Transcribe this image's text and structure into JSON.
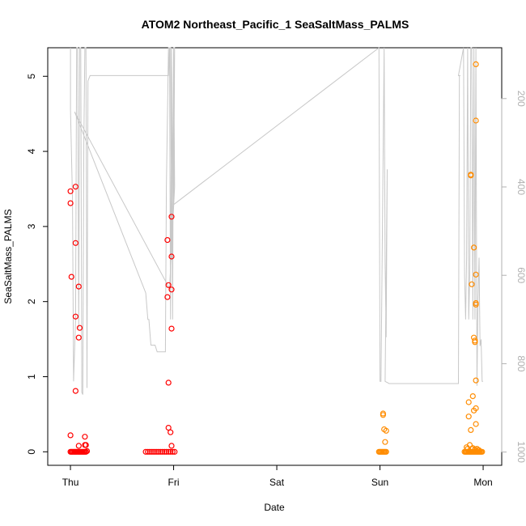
{
  "chart_data": {
    "type": "scatter",
    "title": "ATOM2 Northeast_Pacific_1 SeaSaltMass_PALMS",
    "xlabel": "Date",
    "ylabel": "SeaSaltMass_PALMS",
    "x_ticks": [
      "Thu",
      "Fri",
      "Sat",
      "Sun",
      "Mon"
    ],
    "xlim": [
      -0.22,
      4.18
    ],
    "ylim": [
      -0.18,
      5.38
    ],
    "y_ticks": [
      "0",
      "1",
      "2",
      "3",
      "4",
      "5"
    ],
    "y2_ticks": [
      "200",
      "400",
      "600",
      "800",
      "1000"
    ],
    "y2lim": [
      1030,
      85
    ],
    "y2_reversed": true,
    "grid": false,
    "colors": {
      "red": "#ff0000",
      "orange": "#ff8c00",
      "altitude": "#c8c8c8",
      "right_axis": "#b0b0b0"
    },
    "series": [
      {
        "color": "red",
        "points": [
          [
            0.0,
            3.47
          ],
          [
            0.0,
            3.31
          ],
          [
            0.01,
            2.33
          ],
          [
            0.0,
            0.22
          ],
          [
            0.05,
            3.53
          ],
          [
            0.05,
            2.78
          ],
          [
            0.05,
            1.8
          ],
          [
            0.05,
            0.81
          ],
          [
            0.08,
            2.2
          ],
          [
            0.09,
            1.65
          ],
          [
            0.08,
            1.52
          ],
          [
            0.14,
            0.2
          ],
          [
            0.14,
            0.09
          ],
          [
            0.15,
            0.09
          ],
          [
            0.08,
            0.08
          ],
          [
            0.0,
            0.0
          ],
          [
            0.01,
            0.0
          ],
          [
            0.02,
            0.0
          ],
          [
            0.03,
            0.0
          ],
          [
            0.04,
            0.0
          ],
          [
            0.05,
            0.0
          ],
          [
            0.06,
            0.0
          ],
          [
            0.07,
            0.0
          ],
          [
            0.08,
            0.0
          ],
          [
            0.09,
            0.0
          ],
          [
            0.1,
            0.0
          ],
          [
            0.11,
            0.0
          ],
          [
            0.12,
            0.0
          ],
          [
            0.13,
            0.0
          ],
          [
            0.14,
            0.0
          ],
          [
            0.15,
            0.0
          ],
          [
            0.16,
            0.01
          ],
          [
            0.94,
            2.82
          ],
          [
            0.95,
            2.22
          ],
          [
            0.94,
            2.06
          ],
          [
            0.98,
            3.13
          ],
          [
            0.98,
            2.6
          ],
          [
            0.98,
            2.16
          ],
          [
            0.98,
            1.64
          ],
          [
            0.95,
            0.92
          ],
          [
            0.95,
            0.32
          ],
          [
            0.97,
            0.26
          ],
          [
            0.98,
            0.08
          ],
          [
            0.73,
            0.0
          ],
          [
            0.75,
            0.0
          ],
          [
            0.77,
            0.0
          ],
          [
            0.79,
            0.0
          ],
          [
            0.81,
            0.0
          ],
          [
            0.83,
            0.0
          ],
          [
            0.85,
            0.0
          ],
          [
            0.87,
            0.0
          ],
          [
            0.89,
            0.0
          ],
          [
            0.91,
            0.0
          ],
          [
            0.93,
            0.0
          ],
          [
            0.95,
            0.0
          ],
          [
            0.97,
            0.0
          ],
          [
            0.99,
            0.0
          ],
          [
            1.01,
            0.0
          ]
        ]
      },
      {
        "color": "orange",
        "points": [
          [
            3.03,
            0.51
          ],
          [
            3.03,
            0.49
          ],
          [
            3.04,
            0.3
          ],
          [
            3.06,
            0.28
          ],
          [
            3.05,
            0.13
          ],
          [
            2.99,
            0.0
          ],
          [
            3.0,
            0.0
          ],
          [
            3.01,
            0.0
          ],
          [
            3.02,
            0.0
          ],
          [
            3.03,
            0.0
          ],
          [
            3.04,
            0.0
          ],
          [
            3.05,
            0.0
          ],
          [
            3.06,
            0.0
          ],
          [
            3.93,
            5.16
          ],
          [
            3.93,
            4.41
          ],
          [
            3.88,
            3.69
          ],
          [
            3.88,
            3.68
          ],
          [
            3.91,
            2.72
          ],
          [
            3.93,
            2.36
          ],
          [
            3.89,
            2.23
          ],
          [
            3.93,
            1.98
          ],
          [
            3.93,
            1.96
          ],
          [
            3.91,
            1.52
          ],
          [
            3.92,
            1.48
          ],
          [
            3.92,
            1.46
          ],
          [
            3.93,
            0.95
          ],
          [
            3.9,
            0.74
          ],
          [
            3.86,
            0.66
          ],
          [
            3.93,
            0.58
          ],
          [
            3.91,
            0.55
          ],
          [
            3.86,
            0.47
          ],
          [
            3.93,
            0.37
          ],
          [
            3.88,
            0.29
          ],
          [
            3.84,
            0.06
          ],
          [
            3.85,
            0.04
          ],
          [
            3.87,
            0.09
          ],
          [
            3.89,
            0.04
          ],
          [
            3.9,
            0.05
          ],
          [
            3.92,
            0.03
          ],
          [
            3.94,
            0.04
          ],
          [
            3.95,
            0.02
          ],
          [
            3.96,
            0.02
          ],
          [
            3.82,
            0.0
          ],
          [
            3.83,
            0.0
          ],
          [
            3.84,
            0.0
          ],
          [
            3.85,
            0.0
          ],
          [
            3.86,
            0.0
          ],
          [
            3.87,
            0.0
          ],
          [
            3.88,
            0.0
          ],
          [
            3.89,
            0.0
          ],
          [
            3.9,
            0.0
          ],
          [
            3.91,
            0.0
          ],
          [
            3.92,
            0.0
          ],
          [
            3.93,
            0.0
          ],
          [
            3.94,
            0.0
          ],
          [
            3.95,
            0.0
          ],
          [
            3.96,
            0.0
          ],
          [
            3.97,
            0.0
          ],
          [
            3.98,
            0.0
          ],
          [
            3.99,
            0.0
          ]
        ]
      }
    ],
    "altitude_line": [
      [
        0.0,
        85
      ],
      [
        0.0,
        200
      ],
      [
        0.0,
        225
      ],
      [
        0.02,
        430
      ],
      [
        0.03,
        840
      ],
      [
        0.05,
        700
      ],
      [
        0.06,
        85
      ],
      [
        0.07,
        85
      ],
      [
        0.08,
        720
      ],
      [
        0.09,
        85
      ],
      [
        0.1,
        85
      ],
      [
        0.11,
        865
      ],
      [
        0.12,
        870
      ],
      [
        0.13,
        300
      ],
      [
        0.14,
        85
      ],
      [
        0.15,
        85
      ],
      [
        0.16,
        855
      ],
      [
        0.17,
        160
      ],
      [
        0.19,
        148
      ],
      [
        0.93,
        148
      ],
      [
        0.95,
        148
      ],
      [
        0.96,
        85
      ],
      [
        0.97,
        700
      ],
      [
        0.98,
        85
      ],
      [
        0.99,
        700
      ],
      [
        1.0,
        85
      ],
      [
        1.01,
        400
      ],
      [
        0.96,
        630
      ],
      [
        0.04,
        230
      ],
      [
        0.73,
        640
      ],
      [
        0.75,
        700
      ],
      [
        0.76,
        700
      ],
      [
        0.78,
        758
      ],
      [
        0.82,
        758
      ],
      [
        0.84,
        773
      ],
      [
        0.92,
        773
      ],
      [
        0.93,
        400
      ],
      [
        0.95,
        85
      ],
      [
        0.97,
        85
      ],
      [
        0.98,
        565
      ],
      [
        1.0,
        85
      ],
      [
        1.01,
        85
      ],
      [
        1.0,
        440
      ],
      [
        2.99,
        85
      ],
      [
        3.0,
        840
      ],
      [
        3.01,
        840
      ],
      [
        3.04,
        85
      ],
      [
        3.05,
        575
      ],
      [
        3.06,
        740
      ],
      [
        3.07,
        360
      ],
      [
        3.05,
        840
      ],
      [
        3.09,
        845
      ],
      [
        3.76,
        845
      ],
      [
        3.77,
        148
      ],
      [
        3.78,
        148
      ],
      [
        3.76,
        148
      ],
      [
        3.81,
        85
      ],
      [
        3.82,
        600
      ],
      [
        3.83,
        700
      ],
      [
        3.84,
        560
      ],
      [
        3.85,
        85
      ],
      [
        3.86,
        700
      ],
      [
        3.87,
        600
      ],
      [
        3.88,
        85
      ],
      [
        3.89,
        85
      ],
      [
        3.9,
        700
      ],
      [
        3.91,
        85
      ],
      [
        3.92,
        700
      ],
      [
        3.93,
        85
      ],
      [
        3.94,
        850
      ],
      [
        3.95,
        655
      ],
      [
        3.96,
        560
      ],
      [
        3.97,
        760
      ],
      [
        3.98,
        745
      ],
      [
        3.99,
        840
      ],
      [
        4.0,
        840
      ]
    ]
  }
}
